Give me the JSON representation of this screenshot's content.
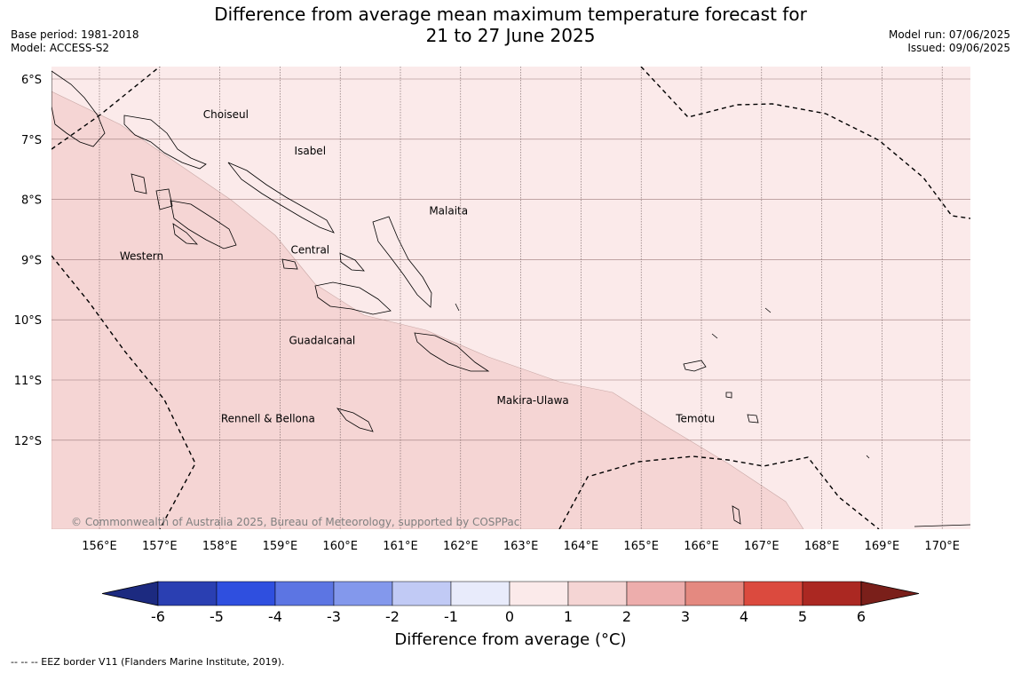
{
  "header": {
    "title_line1": "Difference from average mean maximum temperature forecast for",
    "title_line2": "21 to 27 June 2025",
    "base_period": "Base period: 1981-2018",
    "model": "Model: ACCESS-S2",
    "model_run": "Model run: 07/06/2025",
    "issued": "Issued: 09/06/2025"
  },
  "map": {
    "lat_labels": [
      "6°S",
      "7°S",
      "8°S",
      "9°S",
      "10°S",
      "11°S",
      "12°S"
    ],
    "lon_labels": [
      "156°E",
      "157°E",
      "158°E",
      "159°E",
      "160°E",
      "161°E",
      "162°E",
      "163°E",
      "164°E",
      "165°E",
      "166°E",
      "167°E",
      "168°E",
      "169°E",
      "170°E"
    ],
    "regions": [
      {
        "id": "choiseul",
        "label": "Choiseul",
        "lon": 158.1,
        "lat": -6.65
      },
      {
        "id": "isabel",
        "label": "Isabel",
        "lon": 159.5,
        "lat": -7.25
      },
      {
        "id": "malaita",
        "label": "Malaita",
        "lon": 161.8,
        "lat": -8.25
      },
      {
        "id": "western",
        "label": "Western",
        "lon": 156.7,
        "lat": -9.0
      },
      {
        "id": "central",
        "label": "Central",
        "lon": 159.5,
        "lat": -8.9
      },
      {
        "id": "guadalcanal",
        "label": "Guadalcanal",
        "lon": 159.7,
        "lat": -10.4
      },
      {
        "id": "makira-ulawa",
        "label": "Makira-Ulawa",
        "lon": 163.2,
        "lat": -11.4
      },
      {
        "id": "rennell-bellona",
        "label": "Rennell & Bellona",
        "lon": 158.8,
        "lat": -11.7
      },
      {
        "id": "temotu",
        "label": "Temotu",
        "lon": 165.9,
        "lat": -11.7
      }
    ],
    "copyright": "© Commonwealth of Australia 2025, Bureau of Meteorology, supported by COSPPac",
    "anomaly_fill": {
      "weak": "#fbeaea",
      "stronger": "#f5d5d4"
    }
  },
  "colorbar": {
    "label": "Difference from average (°C)",
    "ticks": [
      "-6",
      "-5",
      "-4",
      "-3",
      "-2",
      "-1",
      "0",
      "1",
      "2",
      "3",
      "4",
      "5",
      "6"
    ],
    "low_extend_color": "#1c2a80",
    "high_extend_color": "#7a1f1a",
    "colors": [
      "#2a3fb2",
      "#2f4fdf",
      "#5c75e3",
      "#8398ec",
      "#c1caf5",
      "#e8ebfb",
      "#fbeaea",
      "#f5d5d4",
      "#edadac",
      "#e48980",
      "#db4a3e",
      "#ab2822"
    ]
  },
  "footnote": "--  --  -- EEZ border V11 (Flanders Marine Institute, 2019)."
}
